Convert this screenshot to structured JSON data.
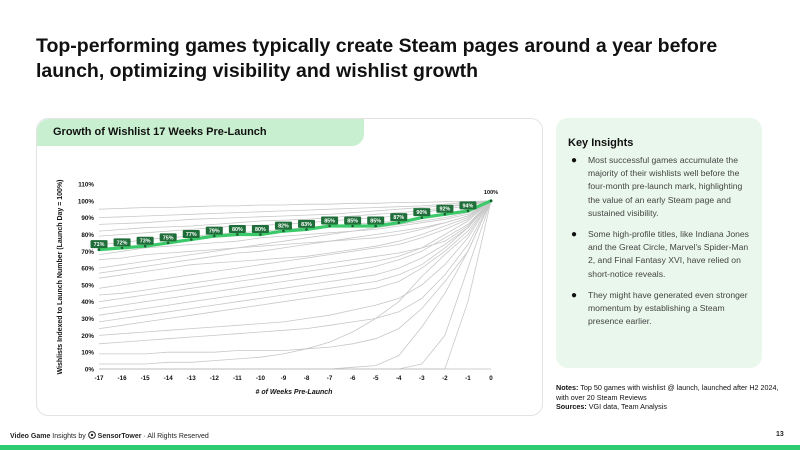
{
  "title": "Top-performing games typically create Steam pages around a year before launch, optimizing visibility and wishlist growth",
  "chart_header": "Growth of Wishlist 17 Weeks Pre-Launch",
  "colors": {
    "accent": "#2ecc71",
    "average_line": "#3cc96a",
    "background_lines": "#c8c8c8",
    "header_bg": "#c8f0d0",
    "label_bg": "#1f6e3a"
  },
  "chart_data": {
    "type": "line",
    "xlabel": "# of Weeks Pre-Launch",
    "ylabel": "Wishlists Indexed to Launch Number (Launch Day = 100%)",
    "x": [
      -17,
      -16,
      -15,
      -14,
      -13,
      -12,
      -11,
      -10,
      -9,
      -8,
      -7,
      -6,
      -5,
      -4,
      -3,
      -2,
      -1,
      0
    ],
    "xlim": [
      -17,
      0
    ],
    "ylim": [
      0,
      110
    ],
    "y_ticks": [
      "0%",
      "10%",
      "20%",
      "30%",
      "40%",
      "50%",
      "60%",
      "70%",
      "80%",
      "90%",
      "100%",
      "110%"
    ],
    "highlight_series": {
      "values": [
        71,
        72,
        73,
        75,
        77,
        79,
        80,
        80,
        82,
        83,
        85,
        85,
        85,
        87,
        90,
        92,
        94,
        100
      ],
      "labels": [
        "71%",
        "72%",
        "73%",
        "75%",
        "77%",
        "79%",
        "80%",
        "80%",
        "82%",
        "83%",
        "85%",
        "85%",
        "85%",
        "87%",
        "90%",
        "92%",
        "94%",
        "100%"
      ]
    },
    "background_series": [
      [
        90,
        90.5,
        91,
        91.5,
        92,
        92.5,
        93,
        93.5,
        94,
        94.5,
        95,
        95.5,
        96,
        96.5,
        97,
        98,
        99,
        100
      ],
      [
        95,
        95.5,
        96,
        96,
        96.5,
        97,
        97,
        97.5,
        97.5,
        98,
        98,
        98.5,
        98.5,
        99,
        99,
        99.5,
        99.5,
        100
      ],
      [
        86,
        86.5,
        87,
        88,
        89,
        89.5,
        90,
        90.5,
        91,
        91.5,
        92,
        93,
        94,
        95,
        96,
        97,
        98,
        100
      ],
      [
        82,
        83,
        84,
        84.5,
        85,
        86,
        87,
        88,
        88.5,
        89,
        90,
        91,
        92,
        93,
        94,
        96,
        98,
        100
      ],
      [
        79,
        80,
        81,
        82,
        83,
        84,
        85,
        85.5,
        86,
        87,
        88,
        89,
        90,
        91,
        93,
        95,
        97,
        100
      ],
      [
        74,
        75,
        77,
        78,
        79,
        80,
        81,
        82,
        83,
        84,
        85,
        86,
        87,
        88,
        90,
        92,
        95,
        100
      ],
      [
        68,
        70,
        72,
        73,
        74,
        75,
        76,
        78,
        79,
        80,
        81,
        82,
        83,
        85,
        87,
        89,
        92,
        100
      ],
      [
        65,
        66,
        68,
        69,
        70,
        71,
        72,
        74,
        76,
        78,
        80,
        82,
        84,
        86,
        88,
        90,
        93,
        100
      ],
      [
        60,
        62,
        64,
        66,
        68,
        70,
        72,
        73,
        74,
        75,
        76,
        77,
        78,
        80,
        83,
        87,
        91,
        100
      ],
      [
        57,
        59,
        61,
        63,
        65,
        67,
        69,
        70,
        72,
        74,
        76,
        78,
        80,
        82,
        84,
        87,
        91,
        100
      ],
      [
        54,
        56,
        58,
        60,
        62,
        63,
        64,
        65,
        66,
        67,
        69,
        71,
        73,
        76,
        80,
        85,
        90,
        100
      ],
      [
        48,
        50,
        52,
        54,
        56,
        58,
        60,
        62,
        64,
        66,
        68,
        70,
        72,
        74,
        78,
        83,
        89,
        100
      ],
      [
        44,
        45,
        47,
        49,
        51,
        53,
        55,
        57,
        59,
        61,
        63,
        65,
        67,
        69,
        72,
        76,
        85,
        100
      ],
      [
        40,
        42,
        44,
        46,
        48,
        50,
        52,
        54,
        56,
        58,
        60,
        62,
        64,
        67,
        72,
        80,
        88,
        100
      ],
      [
        36,
        38,
        40,
        42,
        44,
        46,
        48,
        50,
        52,
        54,
        56,
        58,
        61,
        65,
        70,
        78,
        86,
        100
      ],
      [
        32,
        34,
        36,
        38,
        40,
        42,
        44,
        46,
        48,
        50,
        52,
        54,
        56,
        60,
        66,
        74,
        84,
        100
      ],
      [
        28,
        30,
        32,
        34,
        36,
        38,
        40,
        42,
        44,
        46,
        48,
        50,
        52,
        56,
        62,
        72,
        84,
        100
      ],
      [
        24,
        26,
        28,
        30,
        32,
        34,
        36,
        38,
        40,
        42,
        44,
        46,
        48,
        52,
        60,
        70,
        82,
        100
      ],
      [
        20,
        21,
        22,
        23,
        24,
        25,
        26,
        27,
        28,
        30,
        32,
        35,
        38,
        42,
        50,
        62,
        78,
        100
      ],
      [
        15,
        16,
        17,
        18,
        19,
        20,
        21,
        22,
        23,
        24,
        26,
        28,
        30,
        34,
        42,
        56,
        74,
        100
      ],
      [
        9,
        9,
        9,
        10,
        10,
        10,
        11,
        11,
        11,
        12,
        13,
        15,
        18,
        24,
        36,
        52,
        70,
        100
      ],
      [
        3,
        3,
        3,
        4,
        4,
        5,
        6,
        7,
        9,
        12,
        16,
        22,
        30,
        40,
        55,
        68,
        80,
        100
      ],
      [
        0,
        0,
        0,
        0,
        0,
        0,
        0,
        0,
        0,
        0,
        0,
        1,
        2,
        8,
        25,
        45,
        70,
        100
      ],
      [
        0,
        0,
        0,
        0,
        0,
        0,
        0,
        0,
        0,
        0,
        0,
        0,
        0,
        0,
        3,
        20,
        60,
        100
      ],
      [
        0,
        0,
        0,
        0,
        0,
        0,
        0,
        0,
        0,
        0,
        0,
        0,
        0,
        0,
        0,
        0,
        40,
        100
      ]
    ]
  },
  "insights": {
    "heading": "Key Insights",
    "bullet": "●",
    "items": [
      "Most successful games accumulate the majority of their wishlists well before the four-month pre-launch mark, highlighting the value of an early Steam page and sustained visibility.",
      "Some high-profile titles, like Indiana Jones and the Great Circle, Marvel's Spider-Man 2, and Final Fantasy XVI, have relied on short-notice reveals.",
      "They might have generated even stronger momentum by establishing a Steam presence earlier."
    ]
  },
  "notes": {
    "notes_label": "Notes:",
    "notes_text": "Top 50 games with wishlist @ launch, launched after H2 2024, with over 20 Steam Reviews",
    "sources_label": "Sources:",
    "sources_text": "VGI data, Team Analysis"
  },
  "footer": {
    "brand_bold": "Video Game",
    "brand_rest": "Insights by",
    "partner": "SensorTower",
    "rights": "· All Rights Reserved",
    "page_number": "13"
  }
}
